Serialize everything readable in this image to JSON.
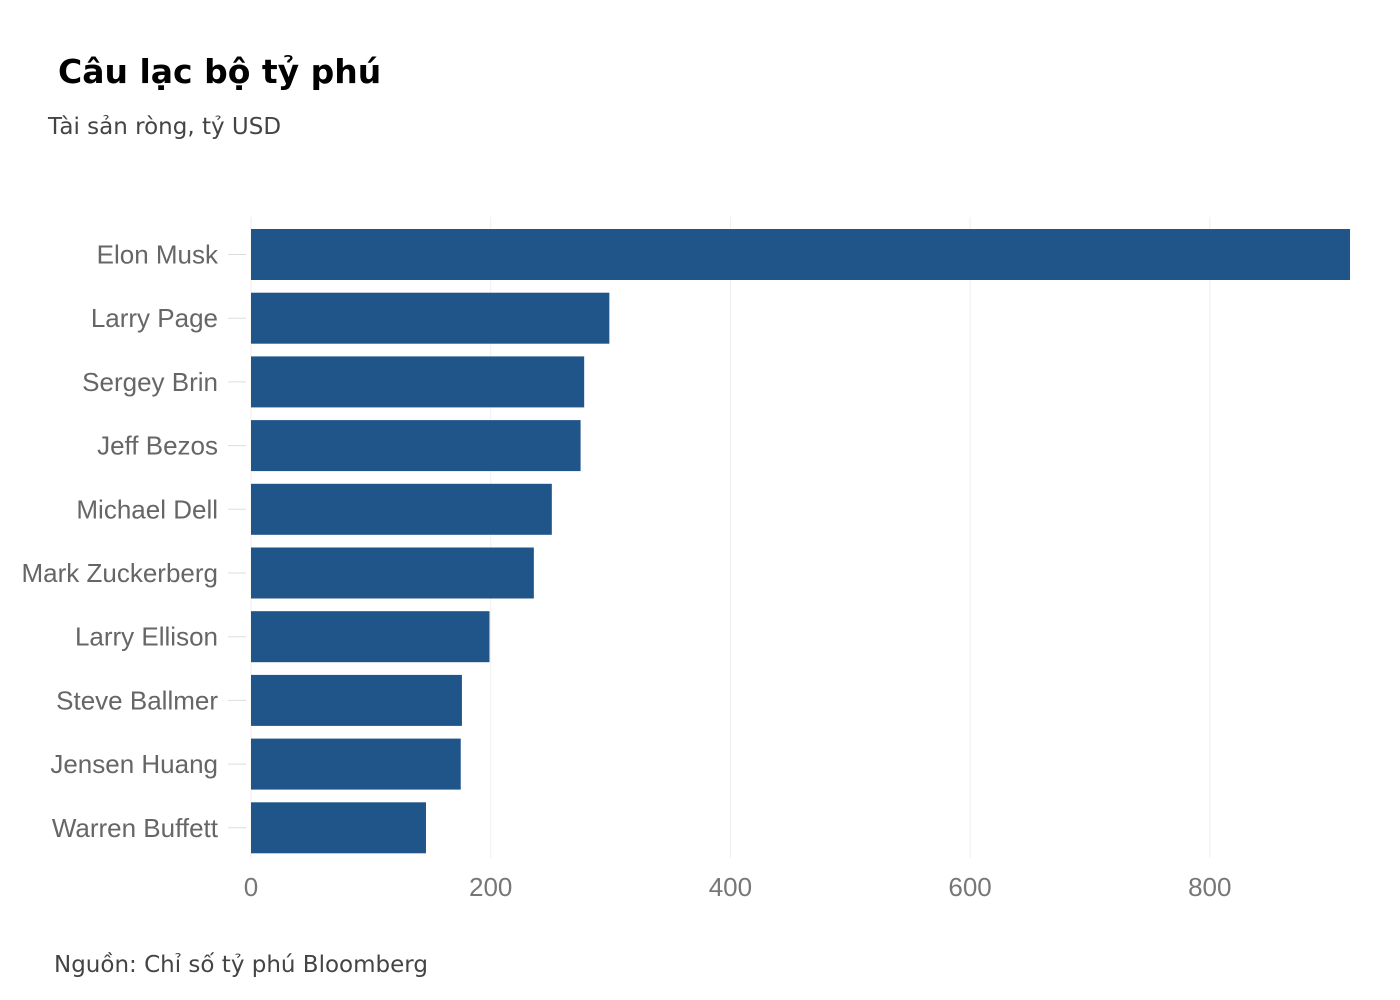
{
  "header": {
    "title": "Câu lạc bộ tỷ phú",
    "subtitle": "Tài sản ròng, tỷ USD"
  },
  "footer": {
    "source": "Nguồn: Chỉ số tỷ phú Bloomberg"
  },
  "colors": {
    "bar": "#20558a",
    "grid": "#eeeeee",
    "tick": "#dddddd"
  },
  "chart_data": {
    "type": "bar",
    "orientation": "horizontal",
    "title": "Câu lạc bộ tỷ phú",
    "subtitle": "Tài sản ròng, tỷ USD",
    "categories": [
      "Elon Musk",
      "Larry Page",
      "Sergey Brin",
      "Jeff Bezos",
      "Michael Dell",
      "Mark Zuckerberg",
      "Larry Ellison",
      "Steve Ballmer",
      "Jensen Huang",
      "Warren Buffett"
    ],
    "values": [
      917,
      299,
      278,
      275,
      251,
      236,
      199,
      176,
      175,
      146
    ],
    "xlim": [
      0,
      920
    ],
    "xticks": [
      0,
      200,
      400,
      600,
      800
    ],
    "grid": "vertical"
  }
}
